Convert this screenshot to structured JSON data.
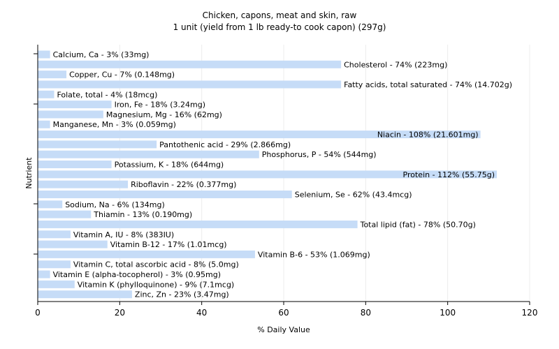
{
  "chart_data": {
    "type": "bar",
    "orientation": "horizontal",
    "title": "Chicken, capons, meat and skin, raw",
    "subtitle": "1 unit (yield from 1 lb ready-to cook capon) (297g)",
    "xlabel": "% Daily Value",
    "ylabel": "Nutrient",
    "xlim": [
      0,
      120
    ],
    "xticks": [
      0,
      20,
      40,
      60,
      80,
      100,
      120
    ],
    "grid": true,
    "bar_color": "#c6dcf7",
    "categories": [
      "Calcium, Ca",
      "Cholesterol",
      "Copper, Cu",
      "Fatty acids, total saturated",
      "Folate, total",
      "Iron, Fe",
      "Magnesium, Mg",
      "Manganese, Mn",
      "Niacin",
      "Pantothenic acid",
      "Phosphorus, P",
      "Potassium, K",
      "Protein",
      "Riboflavin",
      "Selenium, Se",
      "Sodium, Na",
      "Thiamin",
      "Total lipid (fat)",
      "Vitamin A, IU",
      "Vitamin B-12",
      "Vitamin B-6",
      "Vitamin C, total ascorbic acid",
      "Vitamin E (alpha-tocopherol)",
      "Vitamin K (phylloquinone)",
      "Zinc, Zn"
    ],
    "values": [
      3,
      74,
      7,
      74,
      4,
      18,
      16,
      3,
      108,
      29,
      54,
      18,
      112,
      22,
      62,
      6,
      13,
      78,
      8,
      17,
      53,
      8,
      3,
      9,
      23
    ],
    "labels": [
      "Calcium, Ca - 3% (33mg)",
      "Cholesterol - 74% (223mg)",
      "Copper, Cu - 7% (0.148mg)",
      "Fatty acids, total saturated - 74% (14.702g)",
      "Folate, total - 4% (18mcg)",
      "Iron, Fe - 18% (3.24mg)",
      "Magnesium, Mg - 16% (62mg)",
      "Manganese, Mn - 3% (0.059mg)",
      "Niacin - 108% (21.601mg)",
      "Pantothenic acid - 29% (2.866mg)",
      "Phosphorus, P - 54% (544mg)",
      "Potassium, K - 18% (644mg)",
      "Protein - 112% (55.75g)",
      "Riboflavin - 22% (0.377mg)",
      "Selenium, Se - 62% (43.4mcg)",
      "Sodium, Na - 6% (134mg)",
      "Thiamin - 13% (0.190mg)",
      "Total lipid (fat) - 78% (50.70g)",
      "Vitamin A, IU - 8% (383IU)",
      "Vitamin B-12 - 17% (1.01mcg)",
      "Vitamin B-6 - 53% (1.069mg)",
      "Vitamin C, total ascorbic acid - 8% (5.0mg)",
      "Vitamin E (alpha-tocopherol) - 3% (0.95mg)",
      "Vitamin K (phylloquinone) - 9% (7.1mcg)",
      "Zinc, Zn - 23% (3.47mg)"
    ]
  }
}
